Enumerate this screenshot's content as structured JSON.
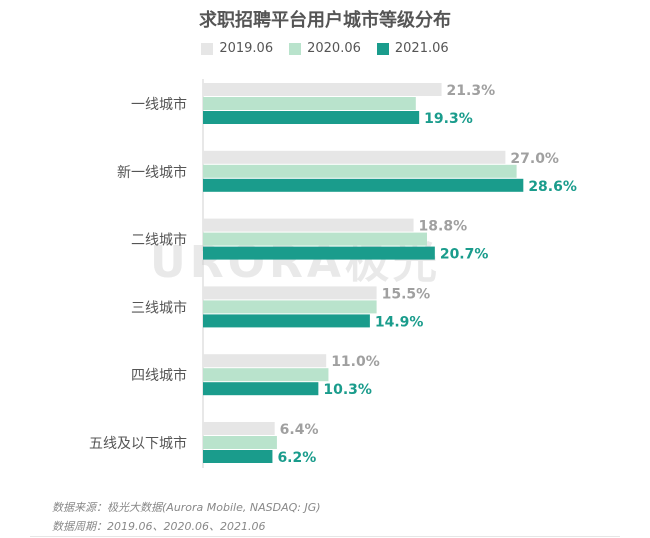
{
  "colors": {
    "series2019": "#e6e6e6",
    "series2020": "#b9e3cc",
    "series2021": "#1a9c8c",
    "label2019": "#a0a0a0",
    "label2020": "#a0a0a0",
    "label2021": "#1a9c8c",
    "text": "#555555"
  },
  "watermark": {
    "text": "URORA极光"
  },
  "footnotes": {
    "source": "数据来源：极光大数据(Aurora Mobile, NASDAQ: JG)",
    "period": "数据周期：2019.06、2020.06、2021.06"
  },
  "chart_data": {
    "type": "bar",
    "orientation": "horizontal",
    "title": "求职招聘平台用户城市等级分布",
    "legend_position": "top",
    "categories": [
      "一线城市",
      "新一线城市",
      "二线城市",
      "三线城市",
      "四线城市",
      "五线及以下城市"
    ],
    "series": [
      {
        "name": "2019.06",
        "values": [
          21.3,
          27.0,
          18.8,
          15.5,
          11.0,
          6.4
        ],
        "labels": [
          "21.3%",
          "27.0%",
          "18.8%",
          "15.5%",
          "11.0%",
          "6.4%"
        ]
      },
      {
        "name": "2020.06",
        "values": [
          19.0,
          28.0,
          20.0,
          15.5,
          11.2,
          6.6
        ],
        "labels": [
          "",
          "",
          "",
          "",
          "",
          ""
        ]
      },
      {
        "name": "2021.06",
        "values": [
          19.3,
          28.6,
          20.7,
          14.9,
          10.3,
          6.2
        ],
        "labels": [
          "19.3%",
          "28.6%",
          "20.7%",
          "14.9%",
          "10.3%",
          "6.2%"
        ]
      }
    ],
    "value_unit": "%",
    "xlim": [
      0,
      30
    ],
    "grid": false
  }
}
